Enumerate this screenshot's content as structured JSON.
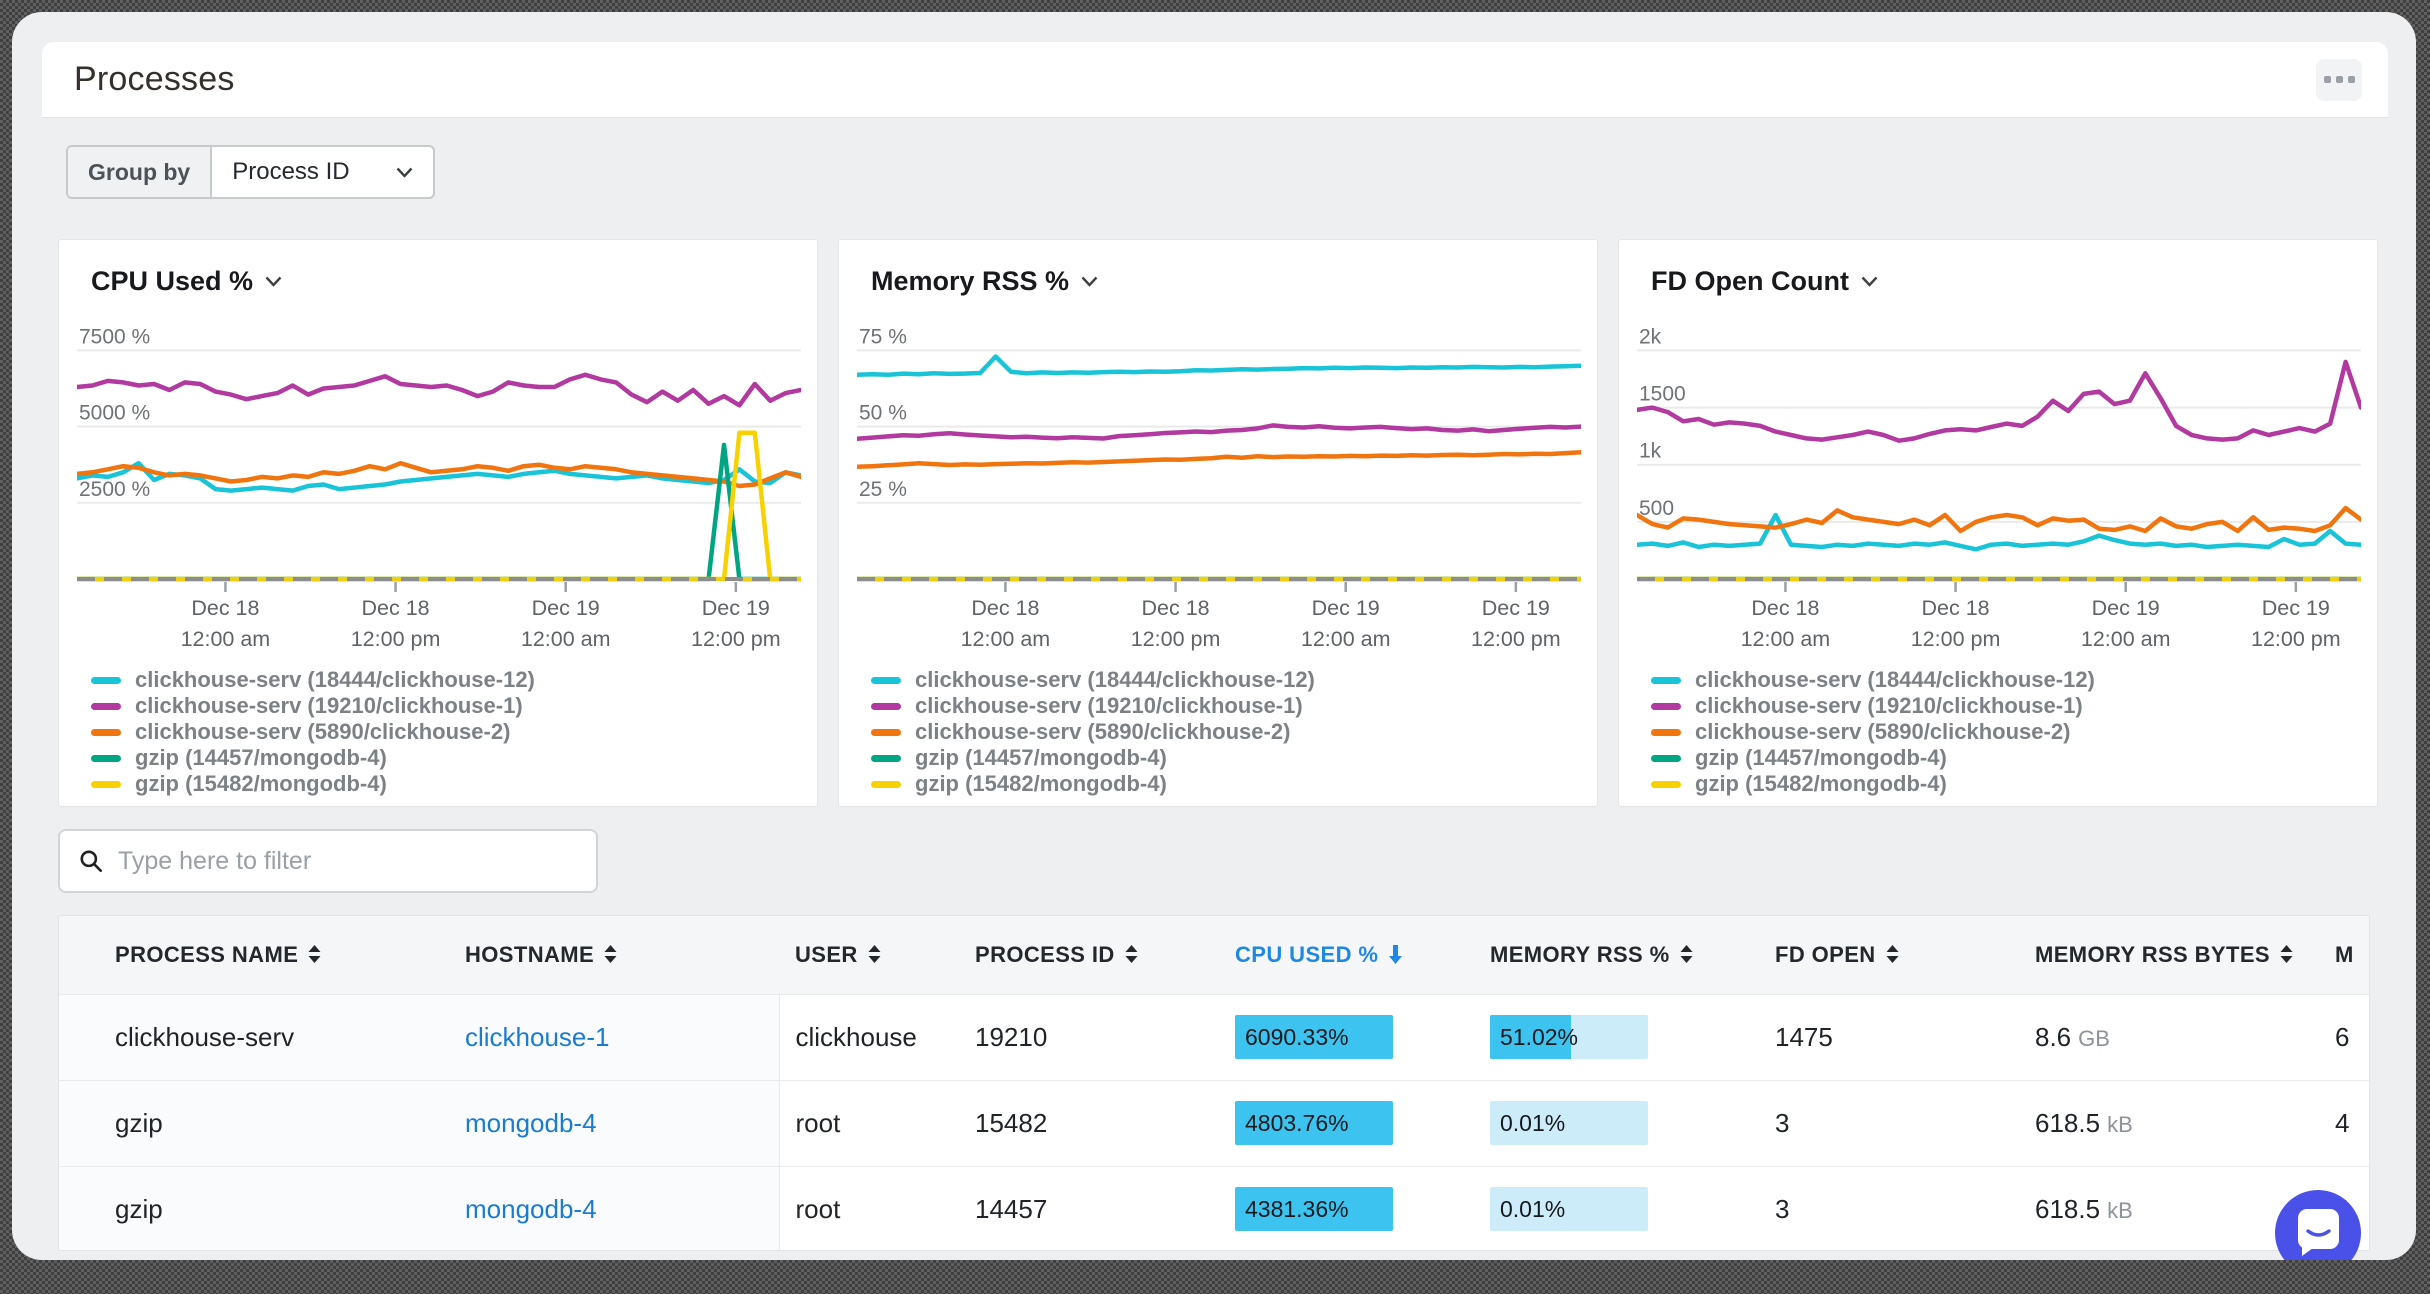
{
  "header": {
    "title": "Processes"
  },
  "group_by": {
    "label": "Group by",
    "value": "Process ID"
  },
  "filter": {
    "placeholder": "Type here to filter"
  },
  "colors": {
    "accent_blue": "#1e88e5",
    "link_blue": "#1a7cd0",
    "bar_fill": "#3cc3ef",
    "bar_track": "#cdecfa",
    "axis_line": "#8d8d8d",
    "axis_dash": "#efd011",
    "chat_bubble": "#4a51e8"
  },
  "chart_data": [
    {
      "type": "line",
      "title": "CPU Used %",
      "ylim": [
        0,
        8400
      ],
      "grid": true,
      "legend_position": "bottom",
      "y_ticks": [
        {
          "value": 2500,
          "label": "2500 %"
        },
        {
          "value": 5000,
          "label": "5000 %"
        },
        {
          "value": 7500,
          "label": "7500 %"
        }
      ],
      "x_ticks": [
        {
          "pos": 0.205,
          "label": [
            "Dec 18",
            "12:00 am"
          ]
        },
        {
          "pos": 0.44,
          "label": [
            "Dec 18",
            "12:00 pm"
          ]
        },
        {
          "pos": 0.675,
          "label": [
            "Dec 19",
            "12:00 am"
          ]
        },
        {
          "pos": 0.91,
          "label": [
            "Dec 19",
            "12:00 pm"
          ]
        }
      ],
      "series": [
        {
          "name": "clickhouse-serv (18444/clickhouse-12)",
          "color": "#19c3d8",
          "values": [
            3300,
            3400,
            3350,
            3500,
            3800,
            3250,
            3450,
            3400,
            3300,
            2950,
            2900,
            2950,
            3000,
            2950,
            2900,
            3050,
            3100,
            2950,
            3000,
            3050,
            3100,
            3200,
            3250,
            3300,
            3350,
            3400,
            3450,
            3400,
            3350,
            3450,
            3500,
            3550,
            3450,
            3400,
            3350,
            3300,
            3350,
            3400,
            3300,
            3250,
            3200,
            3150,
            3250,
            3600,
            3200,
            3150,
            3500,
            3400
          ]
        },
        {
          "name": "clickhouse-serv (19210/clickhouse-1)",
          "color": "#b2399f",
          "values": [
            6300,
            6350,
            6500,
            6450,
            6350,
            6400,
            6200,
            6450,
            6400,
            6150,
            6050,
            5900,
            6000,
            6100,
            6350,
            6050,
            6250,
            6300,
            6350,
            6500,
            6650,
            6400,
            6350,
            6300,
            6350,
            6200,
            6000,
            6150,
            6450,
            6350,
            6300,
            6300,
            6550,
            6700,
            6550,
            6450,
            6050,
            5800,
            6150,
            5850,
            6200,
            5750,
            6000,
            5700,
            6400,
            5850,
            6100,
            6200
          ]
        },
        {
          "name": "clickhouse-serv (5890/clickhouse-2)",
          "color": "#f0750f",
          "values": [
            3450,
            3500,
            3600,
            3700,
            3650,
            3500,
            3400,
            3450,
            3400,
            3300,
            3200,
            3250,
            3350,
            3300,
            3400,
            3350,
            3500,
            3450,
            3550,
            3700,
            3600,
            3800,
            3650,
            3500,
            3550,
            3600,
            3700,
            3650,
            3550,
            3700,
            3750,
            3650,
            3600,
            3700,
            3650,
            3600,
            3500,
            3450,
            3400,
            3350,
            3300,
            3250,
            3200,
            3050,
            3100,
            3300,
            3500,
            3350
          ]
        },
        {
          "name": "gzip (14457/mongodb-4)",
          "color": "#00a682",
          "values": [
            0,
            0,
            0,
            0,
            0,
            0,
            0,
            0,
            0,
            0,
            0,
            0,
            0,
            0,
            0,
            0,
            0,
            0,
            0,
            0,
            0,
            0,
            0,
            0,
            0,
            0,
            0,
            0,
            0,
            0,
            0,
            0,
            0,
            0,
            0,
            0,
            0,
            0,
            0,
            0,
            0,
            0,
            4400,
            0,
            0,
            0,
            0,
            0
          ]
        },
        {
          "name": "gzip (15482/mongodb-4)",
          "color": "#f7d200",
          "values": [
            0,
            0,
            0,
            0,
            0,
            0,
            0,
            0,
            0,
            0,
            0,
            0,
            0,
            0,
            0,
            0,
            0,
            0,
            0,
            0,
            0,
            0,
            0,
            0,
            0,
            0,
            0,
            0,
            0,
            0,
            0,
            0,
            0,
            0,
            0,
            0,
            0,
            0,
            0,
            0,
            0,
            0,
            0,
            4800,
            4800,
            0,
            0,
            0
          ]
        }
      ]
    },
    {
      "type": "line",
      "title": "Memory RSS %",
      "ylim": [
        0,
        84
      ],
      "grid": true,
      "legend_position": "bottom",
      "y_ticks": [
        {
          "value": 25,
          "label": "25 %"
        },
        {
          "value": 50,
          "label": "50 %"
        },
        {
          "value": 75,
          "label": "75 %"
        }
      ],
      "x_ticks": [
        {
          "pos": 0.205,
          "label": [
            "Dec 18",
            "12:00 am"
          ]
        },
        {
          "pos": 0.44,
          "label": [
            "Dec 18",
            "12:00 pm"
          ]
        },
        {
          "pos": 0.675,
          "label": [
            "Dec 19",
            "12:00 am"
          ]
        },
        {
          "pos": 0.91,
          "label": [
            "Dec 19",
            "12:00 pm"
          ]
        }
      ],
      "series": [
        {
          "name": "clickhouse-serv (18444/clickhouse-12)",
          "color": "#19c3d8",
          "values": [
            67,
            67.2,
            67,
            67.4,
            67.2,
            67.5,
            67.3,
            67.4,
            67.6,
            73,
            68,
            67.5,
            67.8,
            67.6,
            67.8,
            67.7,
            67.9,
            68,
            67.9,
            68.1,
            68,
            68.2,
            68.5,
            68.4,
            68.6,
            68.8,
            68.7,
            68.9,
            69,
            69.2,
            69.1,
            69.3,
            69.2,
            69.4,
            69.3,
            69.2,
            69.4,
            69.3,
            69.5,
            69.4,
            69.6,
            69.5,
            69.4,
            69.6,
            69.5,
            69.7,
            69.8,
            70
          ]
        },
        {
          "name": "clickhouse-serv (19210/clickhouse-1)",
          "color": "#b2399f",
          "values": [
            46,
            46.4,
            46.8,
            47.2,
            47,
            47.5,
            47.8,
            47.4,
            47.1,
            46.8,
            46.5,
            46.7,
            46.4,
            46.2,
            46.5,
            46.3,
            46.1,
            46.9,
            47.2,
            47.5,
            47.9,
            48.1,
            48.4,
            48.2,
            48.7,
            48.9,
            49.4,
            50.4,
            49.9,
            49.7,
            50.1,
            49.6,
            49.4,
            49.7,
            49.9,
            49.5,
            49.2,
            49.4,
            48.9,
            48.7,
            49.1,
            48.5,
            48.9,
            49.3,
            49.6,
            49.9,
            49.7,
            50
          ]
        },
        {
          "name": "clickhouse-serv (5890/clickhouse-2)",
          "color": "#f0750f",
          "values": [
            36.8,
            37,
            37.3,
            37.6,
            38,
            37.7,
            37.4,
            37.6,
            37.5,
            37.7,
            37.8,
            38,
            37.9,
            38.1,
            38.3,
            38.2,
            38.4,
            38.6,
            38.8,
            39,
            39.2,
            39.1,
            39.4,
            39.6,
            40.1,
            39.8,
            40.3,
            40,
            40.2,
            40.1,
            40.3,
            40.2,
            40.4,
            40.3,
            40.5,
            40.4,
            40.6,
            40.5,
            40.7,
            40.8,
            40.6,
            40.8,
            41,
            40.9,
            41.1,
            41,
            41.3,
            41.6
          ]
        },
        {
          "name": "gzip (14457/mongodb-4)",
          "color": "#00a682",
          "values": [
            0,
            0,
            0,
            0,
            0,
            0,
            0,
            0,
            0,
            0,
            0,
            0,
            0,
            0,
            0,
            0,
            0,
            0,
            0,
            0,
            0,
            0,
            0,
            0,
            0,
            0,
            0,
            0,
            0,
            0,
            0,
            0,
            0,
            0,
            0,
            0,
            0,
            0,
            0,
            0,
            0,
            0,
            0,
            0,
            0,
            0,
            0,
            0
          ]
        },
        {
          "name": "gzip (15482/mongodb-4)",
          "color": "#f7d200",
          "values": [
            0,
            0,
            0,
            0,
            0,
            0,
            0,
            0,
            0,
            0,
            0,
            0,
            0,
            0,
            0,
            0,
            0,
            0,
            0,
            0,
            0,
            0,
            0,
            0,
            0,
            0,
            0,
            0,
            0,
            0,
            0,
            0,
            0,
            0,
            0,
            0,
            0,
            0,
            0,
            0,
            0,
            0,
            0,
            0,
            0,
            0,
            0,
            0
          ]
        }
      ]
    },
    {
      "type": "line",
      "title": "FD Open Count",
      "ylim": [
        0,
        2240
      ],
      "grid": true,
      "legend_position": "bottom",
      "y_ticks": [
        {
          "value": 500,
          "label": "500"
        },
        {
          "value": 1000,
          "label": "1k"
        },
        {
          "value": 1500,
          "label": "1500"
        },
        {
          "value": 2000,
          "label": "2k"
        }
      ],
      "x_ticks": [
        {
          "pos": 0.205,
          "label": [
            "Dec 18",
            "12:00 am"
          ]
        },
        {
          "pos": 0.44,
          "label": [
            "Dec 18",
            "12:00 pm"
          ]
        },
        {
          "pos": 0.675,
          "label": [
            "Dec 19",
            "12:00 am"
          ]
        },
        {
          "pos": 0.91,
          "label": [
            "Dec 19",
            "12:00 pm"
          ]
        }
      ],
      "series": [
        {
          "name": "clickhouse-serv (18444/clickhouse-12)",
          "color": "#19c3d8",
          "values": [
            300,
            310,
            290,
            320,
            280,
            300,
            290,
            300,
            310,
            560,
            300,
            290,
            280,
            300,
            290,
            310,
            300,
            290,
            310,
            300,
            320,
            290,
            260,
            300,
            310,
            290,
            300,
            310,
            300,
            330,
            380,
            340,
            310,
            300,
            310,
            290,
            300,
            280,
            290,
            300,
            290,
            280,
            350,
            300,
            310,
            420,
            310,
            300
          ]
        },
        {
          "name": "clickhouse-serv (19210/clickhouse-1)",
          "color": "#b2399f",
          "values": [
            1480,
            1500,
            1460,
            1380,
            1400,
            1350,
            1370,
            1360,
            1340,
            1290,
            1260,
            1230,
            1220,
            1240,
            1260,
            1290,
            1260,
            1210,
            1230,
            1270,
            1300,
            1310,
            1300,
            1330,
            1360,
            1340,
            1420,
            1560,
            1470,
            1620,
            1640,
            1530,
            1560,
            1800,
            1580,
            1340,
            1260,
            1230,
            1220,
            1230,
            1300,
            1260,
            1290,
            1320,
            1290,
            1360,
            1900,
            1500
          ]
        },
        {
          "name": "clickhouse-serv (5890/clickhouse-2)",
          "color": "#f0750f",
          "values": [
            560,
            480,
            450,
            530,
            520,
            500,
            480,
            470,
            460,
            450,
            480,
            520,
            490,
            600,
            540,
            520,
            500,
            480,
            520,
            470,
            560,
            420,
            500,
            540,
            560,
            540,
            470,
            530,
            510,
            520,
            440,
            430,
            460,
            420,
            530,
            460,
            440,
            480,
            500,
            420,
            540,
            430,
            450,
            440,
            420,
            470,
            620,
            520
          ]
        },
        {
          "name": "gzip (14457/mongodb-4)",
          "color": "#00a682",
          "values": [
            0,
            0,
            0,
            0,
            0,
            0,
            0,
            0,
            0,
            0,
            0,
            0,
            0,
            0,
            0,
            0,
            0,
            0,
            0,
            0,
            0,
            0,
            0,
            0,
            0,
            0,
            0,
            0,
            0,
            0,
            0,
            0,
            0,
            0,
            0,
            0,
            0,
            0,
            0,
            0,
            0,
            0,
            0,
            0,
            0,
            0,
            0,
            0
          ]
        },
        {
          "name": "gzip (15482/mongodb-4)",
          "color": "#f7d200",
          "values": [
            0,
            0,
            0,
            0,
            0,
            0,
            0,
            0,
            0,
            0,
            0,
            0,
            0,
            0,
            0,
            0,
            0,
            0,
            0,
            0,
            0,
            0,
            0,
            0,
            0,
            0,
            0,
            0,
            0,
            0,
            0,
            0,
            0,
            0,
            0,
            0,
            0,
            0,
            0,
            0,
            0,
            0,
            0,
            0,
            0,
            0,
            0,
            0
          ]
        }
      ]
    }
  ],
  "table": {
    "columns": [
      {
        "id": "process_name",
        "label": "PROCESS NAME",
        "sort": "none"
      },
      {
        "id": "hostname",
        "label": "HOSTNAME",
        "sort": "none"
      },
      {
        "id": "user",
        "label": "USER",
        "sort": "none"
      },
      {
        "id": "process_id",
        "label": "PROCESS ID",
        "sort": "none"
      },
      {
        "id": "cpu_used",
        "label": "CPU USED %",
        "sort": "desc"
      },
      {
        "id": "memory_rss",
        "label": "MEMORY RSS %",
        "sort": "none"
      },
      {
        "id": "fd_open",
        "label": "FD OPEN",
        "sort": "none"
      },
      {
        "id": "memory_rss_bytes",
        "label": "MEMORY RSS BYTES",
        "sort": "none"
      },
      {
        "id": "overflow",
        "label": "M",
        "sort": "none"
      }
    ],
    "rows": [
      {
        "process_name": "clickhouse-serv",
        "hostname": "clickhouse-1",
        "user": "clickhouse",
        "process_id": "19210",
        "cpu_used": {
          "text": "6090.33%",
          "fill_pct": 100
        },
        "memory_rss": {
          "text": "51.02%",
          "fill_pct": 51
        },
        "fd_open": "1475",
        "memory_rss_bytes": {
          "value": "8.6",
          "unit": "GB"
        },
        "overflow": "6"
      },
      {
        "process_name": "gzip",
        "hostname": "mongodb-4",
        "user": "root",
        "process_id": "15482",
        "cpu_used": {
          "text": "4803.76%",
          "fill_pct": 100
        },
        "memory_rss": {
          "text": "0.01%",
          "fill_pct": 0
        },
        "fd_open": "3",
        "memory_rss_bytes": {
          "value": "618.5",
          "unit": "kB"
        },
        "overflow": "4"
      },
      {
        "process_name": "gzip",
        "hostname": "mongodb-4",
        "user": "root",
        "process_id": "14457",
        "cpu_used": {
          "text": "4381.36%",
          "fill_pct": 100
        },
        "memory_rss": {
          "text": "0.01%",
          "fill_pct": 0
        },
        "fd_open": "3",
        "memory_rss_bytes": {
          "value": "618.5",
          "unit": "kB"
        },
        "overflow": "4"
      }
    ]
  }
}
